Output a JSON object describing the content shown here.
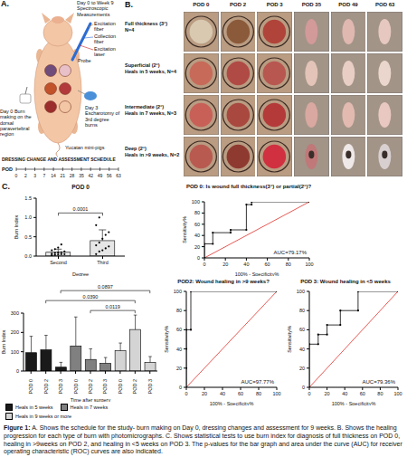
{
  "panel_a": {
    "letter": "A.",
    "labels": {
      "measurements": "Day 0 to Week 9 Spectroscopic Measurements",
      "probe": "Probe",
      "excitation_fiber": "Excitation fiber",
      "collection_fiber": "Collection fiber",
      "excitation_laser": "Excitation laser",
      "burn_making": "Day 0 Burn making on the dorsal paravertebral region",
      "escharotomy": "Day 3 Escharotomy of 3rd degree burns",
      "subject": "Yucatan mini-pigs"
    },
    "schedule": {
      "title": "DRESSING CHANGE AND ASSESSMENT SCHEDULE",
      "label": "POD",
      "days": [
        0,
        2,
        3,
        7,
        14,
        21,
        28,
        35,
        42,
        49,
        56,
        63
      ]
    }
  },
  "panel_b": {
    "letter": "B.",
    "columns": [
      "POD 0",
      "POD 2",
      "POD 3",
      "POD 35",
      "POD 49",
      "POD 63"
    ],
    "rows": [
      {
        "title": "Full thickness (3°)",
        "detail": "N=4"
      },
      {
        "title": "Superficial (2°)",
        "detail": "Heals in 5 weeks, N=4"
      },
      {
        "title": "Intermediate (2°)",
        "detail": "Heals in 7 weeks, N=3"
      },
      {
        "title": "Deep (2°)",
        "detail": "Heals in >9 weeks, N=2"
      }
    ]
  },
  "panel_c": {
    "letter": "C."
  },
  "chart_data": [
    {
      "type": "bar",
      "title": "POD 0",
      "x_label": "Degree",
      "y_label": "Burn Index",
      "categories": [
        "Second",
        "Third"
      ],
      "values": [
        0.1,
        0.4
      ],
      "errors": [
        0.08,
        0.28
      ],
      "points": [
        [
          0.02,
          0.03,
          0.04,
          0.05,
          0.05,
          0.06,
          0.08,
          0.09,
          0.1,
          0.12,
          0.15,
          0.18,
          0.22,
          0.3
        ],
        [
          0.05,
          0.12,
          0.15,
          0.2,
          0.25,
          0.28,
          0.35,
          0.45,
          0.55,
          0.62,
          0.8,
          1.0
        ]
      ],
      "color": "#e6e6e6",
      "ylim": [
        0,
        1.5
      ],
      "yticks": [
        {
          "value": 0,
          "label": "0.0"
        },
        {
          "value": 0.5,
          "label": "0.5"
        },
        {
          "value": 1,
          "label": "1.0"
        },
        {
          "value": 1.5,
          "label": "1.5"
        }
      ],
      "comparisons": [
        {
          "from": "Second",
          "to": "Third",
          "p": "0.0001"
        }
      ]
    },
    {
      "type": "line",
      "title": "POD 0: Is wound full thickness(3°) or partial(2°)?",
      "x_label": "100% - Specificity%",
      "y_label": "Sensitivity%",
      "series": [
        {
          "x": [
            0,
            0,
            8,
            8,
            25,
            25,
            40,
            40,
            45,
            45,
            100
          ],
          "values": [
            0,
            25,
            25,
            45,
            45,
            50,
            50,
            95,
            95,
            100,
            100
          ],
          "color": "#000000",
          "marker": "circle"
        },
        {
          "x": [
            0,
            100
          ],
          "values": [
            0,
            100
          ],
          "color": "#e0302a",
          "marker": "none"
        }
      ],
      "xlim": [
        0,
        100
      ],
      "ylim": [
        0,
        100
      ],
      "xticks": [
        0,
        20,
        40,
        60,
        80,
        100
      ],
      "yticks": [
        0,
        20,
        40,
        60,
        80,
        100
      ],
      "annotations": [
        "AUC=79.17%"
      ]
    },
    {
      "type": "bar",
      "x_label": "Time after surgery",
      "y_label": "Burn Index",
      "categories": [
        "POD 0",
        "POD 2",
        "POD 3"
      ],
      "series": [
        {
          "name": "Heals in 5 weeks",
          "color": "#1a1a1a",
          "values": [
            95,
            110,
            20
          ],
          "errors": [
            85,
            75,
            25
          ]
        },
        {
          "name": "Heals in 7 weeks",
          "color": "#808080",
          "values": [
            130,
            60,
            40
          ],
          "errors": [
            150,
            55,
            30
          ]
        },
        {
          "name": "Heals in 9 weeks or more",
          "color": "#d4d4d4",
          "values": [
            105,
            215,
            45
          ],
          "errors": [
            40,
            75,
            30
          ]
        }
      ],
      "ylim": [
        0,
        300
      ],
      "yticks": [
        0,
        100,
        200,
        300
      ],
      "legend": "bottom",
      "comparisons": [
        {
          "from": [
            "Heals in 5 weeks",
            "POD 3"
          ],
          "to": [
            "Heals in 9 weeks or more",
            "POD 3"
          ],
          "p": "0.0897"
        },
        {
          "from": [
            "Heals in 5 weeks",
            "POD 2"
          ],
          "to": [
            "Heals in 9 weeks or more",
            "POD 2"
          ],
          "p": "0.0390"
        },
        {
          "from": [
            "Heals in 7 weeks",
            "POD 2"
          ],
          "to": [
            "Heals in 9 weeks or more",
            "POD 2"
          ],
          "p": "0.0119"
        }
      ]
    },
    {
      "type": "line",
      "title": "POD2: Wound healing in >9 weeks?",
      "x_label": "100% - Specificity%",
      "y_label": "Sensitivity%",
      "series": [
        {
          "x": [
            0,
            0,
            0,
            0,
            5,
            5,
            100
          ],
          "values": [
            0,
            20,
            40,
            60,
            60,
            100,
            100
          ],
          "color": "#000000",
          "marker": "circle"
        },
        {
          "x": [
            0,
            100
          ],
          "values": [
            0,
            100
          ],
          "color": "#e0302a",
          "marker": "none"
        }
      ],
      "xlim": [
        0,
        100
      ],
      "ylim": [
        0,
        100
      ],
      "xticks": [
        0,
        20,
        40,
        60,
        80,
        100
      ],
      "yticks": [
        0,
        20,
        40,
        60,
        80,
        100
      ],
      "annotations": [
        "AUC=97.77%"
      ]
    },
    {
      "type": "line",
      "title": "POD 3: Wound healing in <5 weeks",
      "x_label": "100% - Specificity%",
      "y_label": "Sensitivity%",
      "series": [
        {
          "x": [
            0,
            0,
            10,
            10,
            20,
            20,
            35,
            35,
            55,
            55,
            100
          ],
          "values": [
            0,
            45,
            45,
            55,
            55,
            65,
            65,
            80,
            80,
            100,
            100
          ],
          "color": "#000000",
          "marker": "circle"
        },
        {
          "x": [
            0,
            100
          ],
          "values": [
            0,
            100
          ],
          "color": "#e0302a",
          "marker": "none"
        }
      ],
      "xlim": [
        0,
        100
      ],
      "ylim": [
        0,
        100
      ],
      "xticks": [
        0,
        20,
        40,
        60,
        80,
        100
      ],
      "yticks": [
        0,
        20,
        40,
        60,
        80,
        100
      ],
      "annotations": [
        "AUC=79.36%"
      ]
    }
  ],
  "caption": {
    "label": "Figure 1:",
    "text": "A. Shows the schedule for the study- burn making on Day 0, dressing changes and assessment for 9 weeks. B. Shows the healing progression for each type of burn with photomicrographs. C. Shows statistical tests to use burn index for diagnosis of full thickness on POD 0, healing in >9weeks on POD 2, and healing in <5 weeks on POD 3. The p-values for the bar graph and area under the curve (AUC) for receiver operating characteristic (ROC) curves are also indicated."
  }
}
